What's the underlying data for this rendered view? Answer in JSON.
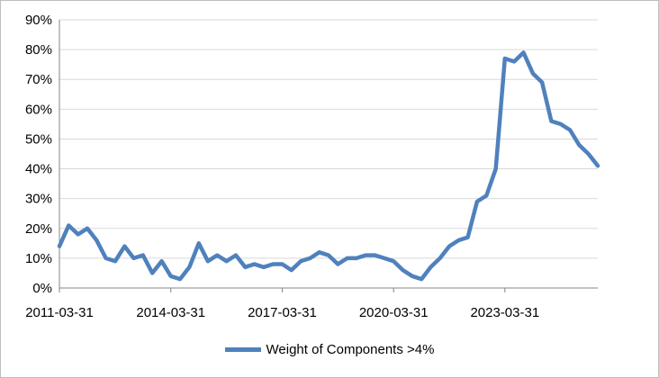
{
  "chart_data": {
    "type": "line",
    "title": "",
    "xlabel": "",
    "ylabel": "",
    "ylim": [
      0,
      0.9
    ],
    "y_ticks": [
      0,
      0.1,
      0.2,
      0.3,
      0.4,
      0.5,
      0.6,
      0.7,
      0.8,
      0.9
    ],
    "y_tick_labels": [
      "0%",
      "10%",
      "20%",
      "30%",
      "40%",
      "50%",
      "60%",
      "70%",
      "80%",
      "90%"
    ],
    "x_tick_labels": [
      "2011-03-31",
      "2014-03-31",
      "2017-03-31",
      "2020-03-31",
      "2023-03-31"
    ],
    "x_tick_dates": [
      "2011-03-31",
      "2014-03-31",
      "2017-03-31",
      "2020-03-31",
      "2023-03-31"
    ],
    "xlim": [
      "2011-03-31",
      "2025-09-30"
    ],
    "grid": "horizontal",
    "legend": "bottom",
    "series": [
      {
        "name": "Weight of Components >4%",
        "color": "#4f81bd",
        "x": [
          "2011-03-31",
          "2011-06-30",
          "2011-09-30",
          "2011-12-31",
          "2012-03-31",
          "2012-06-30",
          "2012-09-30",
          "2012-12-31",
          "2013-03-31",
          "2013-06-30",
          "2013-09-30",
          "2013-12-31",
          "2014-03-31",
          "2014-06-30",
          "2014-09-30",
          "2014-12-31",
          "2015-03-31",
          "2015-06-30",
          "2015-09-30",
          "2015-12-31",
          "2016-03-31",
          "2016-06-30",
          "2016-09-30",
          "2016-12-31",
          "2017-03-31",
          "2017-06-30",
          "2017-09-30",
          "2017-12-31",
          "2018-03-31",
          "2018-06-30",
          "2018-09-30",
          "2018-12-31",
          "2019-03-31",
          "2019-06-30",
          "2019-09-30",
          "2019-12-31",
          "2020-03-31",
          "2020-06-30",
          "2020-09-30",
          "2020-12-31",
          "2021-03-31",
          "2021-06-30",
          "2021-09-30",
          "2021-12-31",
          "2022-03-31",
          "2022-06-30",
          "2022-09-30",
          "2022-12-31",
          "2023-03-31",
          "2023-06-30",
          "2023-09-30",
          "2023-12-31",
          "2024-03-31",
          "2024-06-30",
          "2024-09-30",
          "2024-12-31",
          "2025-03-31",
          "2025-06-30",
          "2025-09-30"
        ],
        "values": [
          0.14,
          0.21,
          0.18,
          0.2,
          0.16,
          0.1,
          0.09,
          0.14,
          0.1,
          0.11,
          0.05,
          0.09,
          0.04,
          0.03,
          0.07,
          0.15,
          0.09,
          0.11,
          0.09,
          0.11,
          0.07,
          0.08,
          0.07,
          0.08,
          0.08,
          0.06,
          0.09,
          0.1,
          0.12,
          0.11,
          0.08,
          0.1,
          0.1,
          0.11,
          0.11,
          0.1,
          0.09,
          0.06,
          0.04,
          0.03,
          0.07,
          0.1,
          0.14,
          0.16,
          0.17,
          0.29,
          0.31,
          0.4,
          0.77,
          0.76,
          0.79,
          0.72,
          0.69,
          0.56,
          0.55,
          0.53,
          0.48,
          0.45,
          0.41
        ]
      }
    ]
  }
}
